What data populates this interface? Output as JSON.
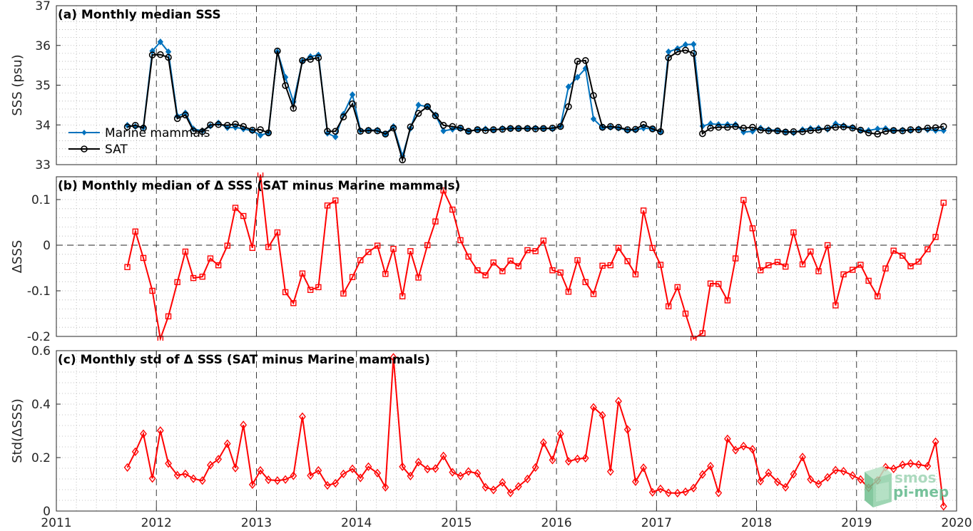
{
  "chart_data": [
    {
      "type": "line",
      "title": "(a) Monthly median SSS",
      "xlabel": "",
      "ylabel": "SSS (psu)",
      "xlim": [
        2011,
        2020
      ],
      "ylim": [
        33,
        37
      ],
      "yticks": [
        "33",
        "34",
        "35",
        "36",
        "37"
      ],
      "grid": true,
      "legend_position": "left",
      "x": [
        2011.71,
        2011.79,
        2011.87,
        2011.96,
        2012.04,
        2012.12,
        2012.21,
        2012.29,
        2012.37,
        2012.46,
        2012.54,
        2012.62,
        2012.71,
        2012.79,
        2012.87,
        2012.96,
        2013.04,
        2013.12,
        2013.21,
        2013.29,
        2013.37,
        2013.46,
        2013.54,
        2013.62,
        2013.71,
        2013.79,
        2013.87,
        2013.96,
        2014.04,
        2014.12,
        2014.21,
        2014.29,
        2014.37,
        2014.46,
        2014.54,
        2014.62,
        2014.71,
        2014.79,
        2014.87,
        2014.96,
        2015.04,
        2015.12,
        2015.21,
        2015.29,
        2015.37,
        2015.46,
        2015.54,
        2015.62,
        2015.71,
        2015.79,
        2015.87,
        2015.96,
        2016.04,
        2016.12,
        2016.21,
        2016.29,
        2016.37,
        2016.46,
        2016.54,
        2016.62,
        2016.71,
        2016.79,
        2016.87,
        2016.96,
        2017.04,
        2017.12,
        2017.21,
        2017.29,
        2017.37,
        2017.46,
        2017.54,
        2017.62,
        2017.71,
        2017.79,
        2017.87,
        2017.96,
        2018.04,
        2018.12,
        2018.21,
        2018.29,
        2018.37,
        2018.46,
        2018.54,
        2018.62,
        2018.71,
        2018.79,
        2018.87,
        2018.96,
        2019.04,
        2019.12,
        2019.21,
        2019.29,
        2019.37,
        2019.46,
        2019.54,
        2019.62,
        2019.71,
        2019.79,
        2019.87
      ],
      "series": [
        {
          "name": "Marine mammals",
          "color": "#0072BD",
          "marker": "filled-diamond",
          "values": [
            33.99,
            33.96,
            33.94,
            35.86,
            36.09,
            35.84,
            34.22,
            34.3,
            33.9,
            33.85,
            33.97,
            34.05,
            33.93,
            33.94,
            33.9,
            33.85,
            33.74,
            33.8,
            35.84,
            35.2,
            34.58,
            35.6,
            35.72,
            35.76,
            33.79,
            33.7,
            34.27,
            34.76,
            33.86,
            33.87,
            33.87,
            33.77,
            33.96,
            33.22,
            33.91,
            34.5,
            34.46,
            34.25,
            33.85,
            33.89,
            33.91,
            33.84,
            33.88,
            33.9,
            33.87,
            33.91,
            33.91,
            33.91,
            33.91,
            33.92,
            33.91,
            33.9,
            33.97,
            34.96,
            35.2,
            35.42,
            34.15,
            33.93,
            33.94,
            33.92,
            33.86,
            33.87,
            33.92,
            33.9,
            33.82,
            35.84,
            35.92,
            36.02,
            36.03,
            33.97,
            34.03,
            34.01,
            34.01,
            34.01,
            33.82,
            33.84,
            33.92,
            33.88,
            33.86,
            33.83,
            33.8,
            33.88,
            33.91,
            33.92,
            33.89,
            34.03,
            33.98,
            33.94,
            33.86,
            33.86,
            33.9,
            33.91,
            33.86,
            33.87,
            33.86,
            33.9,
            33.88,
            33.86,
            33.86
          ]
        },
        {
          "name": "SAT",
          "color": "#000000",
          "marker": "open-circle",
          "values": [
            33.95,
            33.99,
            33.92,
            35.76,
            35.77,
            35.7,
            34.16,
            34.25,
            33.85,
            33.83,
            34.0,
            34.01,
            33.99,
            34.02,
            33.96,
            33.87,
            33.88,
            33.8,
            35.86,
            34.99,
            34.42,
            35.62,
            35.65,
            35.69,
            33.84,
            33.84,
            34.2,
            34.53,
            33.84,
            33.86,
            33.85,
            33.77,
            33.92,
            33.12,
            33.95,
            34.29,
            34.46,
            34.23,
            33.99,
            33.96,
            33.92,
            33.84,
            33.88,
            33.86,
            33.88,
            33.89,
            33.91,
            33.91,
            33.91,
            33.9,
            33.91,
            33.92,
            33.96,
            34.46,
            35.6,
            35.62,
            34.74,
            33.94,
            33.96,
            33.94,
            33.88,
            33.89,
            34.01,
            33.9,
            33.83,
            35.69,
            35.84,
            35.88,
            35.8,
            33.78,
            33.92,
            33.94,
            33.94,
            33.96,
            33.92,
            33.94,
            33.87,
            33.85,
            33.85,
            33.82,
            33.83,
            33.83,
            33.86,
            33.87,
            33.92,
            33.94,
            33.95,
            33.92,
            33.87,
            33.8,
            33.77,
            33.84,
            33.86,
            33.85,
            33.88,
            33.88,
            33.92,
            33.93,
            33.96
          ]
        }
      ]
    },
    {
      "type": "line",
      "title": "(b) Monthly median of Δ SSS (SAT minus Marine mammals)",
      "xlabel": "",
      "ylabel": "ΔSSS",
      "xlim": [
        2011,
        2020
      ],
      "ylim": [
        -0.2,
        0.15
      ],
      "yticks": [
        "-0.2",
        "-0.1",
        "0",
        "0.1"
      ],
      "zero_line": "dashed",
      "grid": true,
      "x": [
        2011.71,
        2011.79,
        2011.87,
        2011.96,
        2012.04,
        2012.12,
        2012.21,
        2012.29,
        2012.37,
        2012.46,
        2012.54,
        2012.62,
        2012.71,
        2012.79,
        2012.87,
        2012.96,
        2013.04,
        2013.12,
        2013.21,
        2013.29,
        2013.37,
        2013.46,
        2013.54,
        2013.62,
        2013.71,
        2013.79,
        2013.87,
        2013.96,
        2014.04,
        2014.12,
        2014.21,
        2014.29,
        2014.37,
        2014.46,
        2014.54,
        2014.62,
        2014.71,
        2014.79,
        2014.87,
        2014.96,
        2015.04,
        2015.12,
        2015.21,
        2015.29,
        2015.37,
        2015.46,
        2015.54,
        2015.62,
        2015.71,
        2015.79,
        2015.87,
        2015.96,
        2016.04,
        2016.12,
        2016.21,
        2016.29,
        2016.37,
        2016.46,
        2016.54,
        2016.62,
        2016.71,
        2016.79,
        2016.87,
        2016.96,
        2017.04,
        2017.12,
        2017.21,
        2017.29,
        2017.37,
        2017.46,
        2017.54,
        2017.62,
        2017.71,
        2017.79,
        2017.87,
        2017.96,
        2018.04,
        2018.12,
        2018.21,
        2018.29,
        2018.37,
        2018.46,
        2018.54,
        2018.62,
        2018.71,
        2018.79,
        2018.87,
        2018.96,
        2019.04,
        2019.12,
        2019.21,
        2019.29,
        2019.37,
        2019.46,
        2019.54,
        2019.62,
        2019.71,
        2019.79,
        2019.87
      ],
      "series": [
        {
          "name": "",
          "color": "#ff0000",
          "marker": "open-square",
          "values": [
            -0.048,
            0.03,
            -0.028,
            -0.1,
            -0.205,
            -0.156,
            -0.081,
            -0.014,
            -0.072,
            -0.069,
            -0.029,
            -0.044,
            -0.001,
            0.082,
            0.064,
            -0.006,
            0.155,
            -0.004,
            0.028,
            -0.103,
            -0.127,
            -0.062,
            -0.098,
            -0.092,
            0.087,
            0.098,
            -0.106,
            -0.07,
            -0.033,
            -0.015,
            -0.001,
            -0.063,
            -0.008,
            -0.112,
            -0.013,
            -0.071,
            0.0,
            0.052,
            0.12,
            0.078,
            0.011,
            -0.025,
            -0.055,
            -0.066,
            -0.038,
            -0.057,
            -0.034,
            -0.046,
            -0.011,
            -0.013,
            0.01,
            -0.055,
            -0.06,
            -0.102,
            -0.033,
            -0.081,
            -0.107,
            -0.045,
            -0.044,
            -0.006,
            -0.035,
            -0.064,
            0.076,
            -0.006,
            -0.043,
            -0.134,
            -0.092,
            -0.15,
            -0.205,
            -0.193,
            -0.084,
            -0.085,
            -0.121,
            -0.029,
            0.099,
            0.037,
            -0.055,
            -0.044,
            -0.037,
            -0.047,
            0.028,
            -0.042,
            -0.014,
            -0.057,
            0.0,
            -0.132,
            -0.064,
            -0.054,
            -0.043,
            -0.078,
            -0.112,
            -0.051,
            -0.012,
            -0.023,
            -0.046,
            -0.036,
            -0.009,
            0.018,
            0.093
          ]
        }
      ]
    },
    {
      "type": "line",
      "title": "(c) Monthly std of Δ SSS (SAT minus Marine mammals)",
      "xlabel": "",
      "ylabel": "Std(ΔSSS)",
      "xlim": [
        2011,
        2020
      ],
      "ylim": [
        0,
        0.6
      ],
      "yticks": [
        "0",
        "0.2",
        "0.4",
        "0.6"
      ],
      "xticks": [
        "2011",
        "2012",
        "2013",
        "2014",
        "2015",
        "2016",
        "2017",
        "2018",
        "2019",
        "2020"
      ],
      "grid": true,
      "x": [
        2011.71,
        2011.79,
        2011.87,
        2011.96,
        2012.04,
        2012.12,
        2012.21,
        2012.29,
        2012.37,
        2012.46,
        2012.54,
        2012.62,
        2012.71,
        2012.79,
        2012.87,
        2012.96,
        2013.04,
        2013.12,
        2013.21,
        2013.29,
        2013.37,
        2013.46,
        2013.54,
        2013.62,
        2013.71,
        2013.79,
        2013.87,
        2013.96,
        2014.04,
        2014.12,
        2014.21,
        2014.29,
        2014.37,
        2014.46,
        2014.54,
        2014.62,
        2014.71,
        2014.79,
        2014.87,
        2014.96,
        2015.04,
        2015.12,
        2015.21,
        2015.29,
        2015.37,
        2015.46,
        2015.54,
        2015.62,
        2015.71,
        2015.79,
        2015.87,
        2015.96,
        2016.04,
        2016.12,
        2016.21,
        2016.29,
        2016.37,
        2016.46,
        2016.54,
        2016.62,
        2016.71,
        2016.79,
        2016.87,
        2016.96,
        2017.04,
        2017.12,
        2017.21,
        2017.29,
        2017.37,
        2017.46,
        2017.54,
        2017.62,
        2017.71,
        2017.79,
        2017.87,
        2017.96,
        2018.04,
        2018.12,
        2018.21,
        2018.29,
        2018.37,
        2018.46,
        2018.54,
        2018.62,
        2018.71,
        2018.79,
        2018.87,
        2018.96,
        2019.04,
        2019.12,
        2019.21,
        2019.29,
        2019.37,
        2019.46,
        2019.54,
        2019.62,
        2019.71,
        2019.79,
        2019.87
      ],
      "series": [
        {
          "name": "",
          "color": "#ff0000",
          "marker": "open-diamond",
          "values": [
            0.163,
            0.222,
            0.289,
            0.122,
            0.301,
            0.178,
            0.134,
            0.139,
            0.121,
            0.114,
            0.172,
            0.194,
            0.252,
            0.161,
            0.322,
            0.099,
            0.152,
            0.117,
            0.114,
            0.118,
            0.132,
            0.353,
            0.133,
            0.152,
            0.096,
            0.104,
            0.139,
            0.158,
            0.124,
            0.166,
            0.142,
            0.089,
            0.575,
            0.166,
            0.131,
            0.183,
            0.157,
            0.159,
            0.206,
            0.145,
            0.131,
            0.148,
            0.141,
            0.089,
            0.079,
            0.107,
            0.068,
            0.092,
            0.12,
            0.163,
            0.256,
            0.191,
            0.289,
            0.186,
            0.195,
            0.198,
            0.388,
            0.358,
            0.148,
            0.411,
            0.305,
            0.11,
            0.162,
            0.07,
            0.083,
            0.068,
            0.067,
            0.072,
            0.086,
            0.137,
            0.168,
            0.068,
            0.27,
            0.228,
            0.243,
            0.231,
            0.112,
            0.143,
            0.109,
            0.089,
            0.138,
            0.202,
            0.118,
            0.101,
            0.126,
            0.153,
            0.149,
            0.133,
            0.118,
            0.087,
            0.115,
            0.164,
            0.158,
            0.173,
            0.178,
            0.174,
            0.168,
            0.259,
            0.018
          ]
        }
      ]
    }
  ],
  "logo": {
    "line1": "smos",
    "line2": "pi-mep"
  }
}
